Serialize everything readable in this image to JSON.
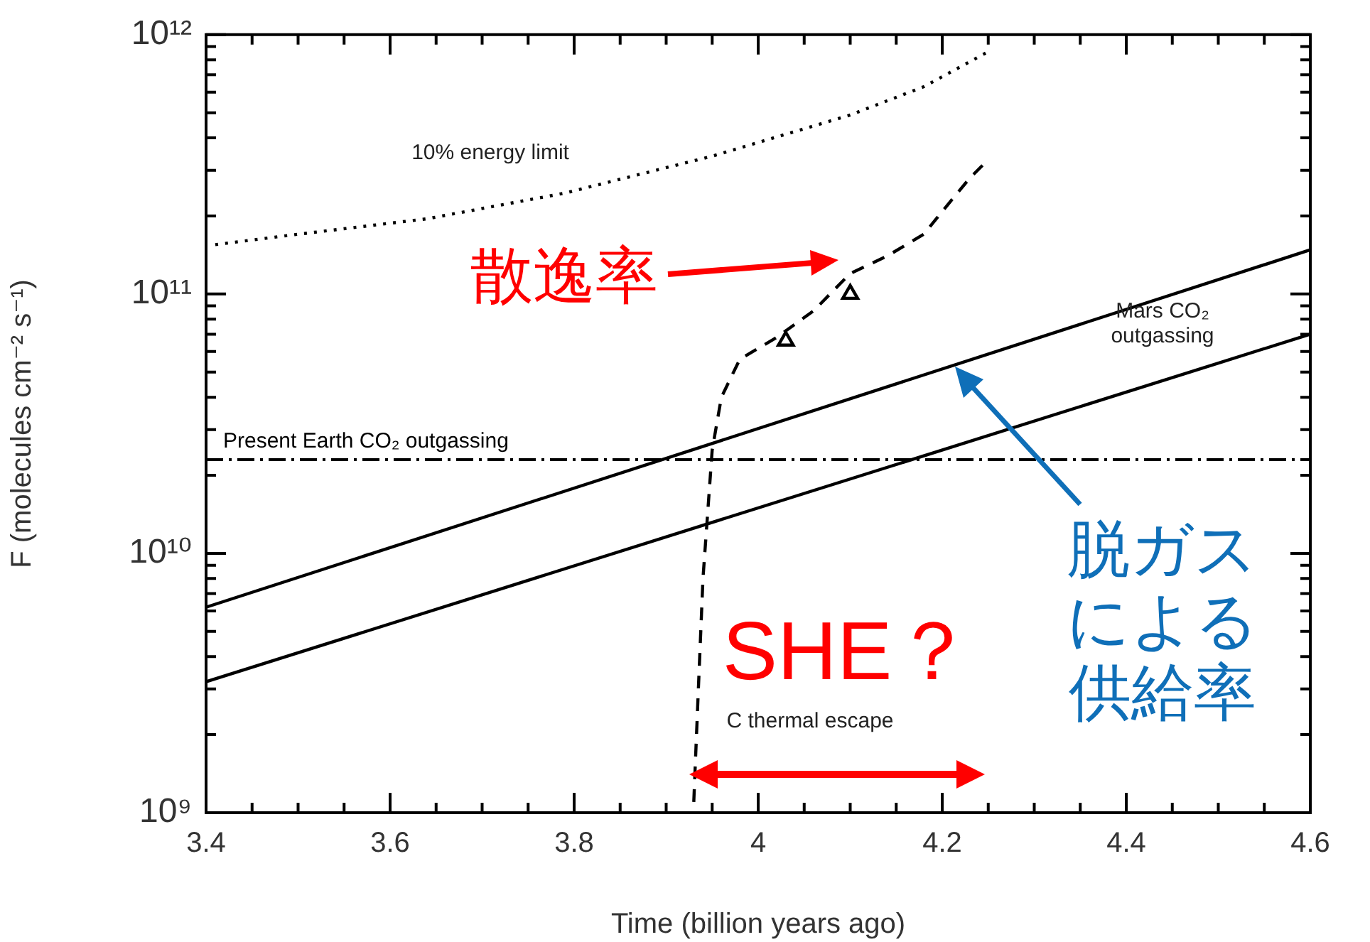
{
  "chart_data": {
    "type": "line",
    "xlabel": "Time (billion years ago)",
    "ylabel": "F (molecules cm⁻² s⁻¹)",
    "xlim": [
      3.4,
      4.6
    ],
    "xticks": [
      3.4,
      {
        "value": 3.45,
        "label": null
      },
      {
        "value": 3.5,
        "label": null
      },
      {
        "value": 3.55,
        "label": null
      },
      3.6,
      {
        "value": 3.65,
        "label": null
      },
      {
        "value": 3.7,
        "label": null
      },
      {
        "value": 3.75,
        "label": null
      },
      3.8,
      {
        "value": 3.85,
        "label": null
      },
      {
        "value": 3.9,
        "label": null
      },
      {
        "value": 3.95,
        "label": null
      },
      4.0,
      {
        "value": 4.05,
        "label": null
      },
      {
        "value": 4.1,
        "label": null
      },
      {
        "value": 4.15,
        "label": null
      },
      4.2,
      {
        "value": 4.25,
        "label": null
      },
      {
        "value": 4.3,
        "label": null
      },
      {
        "value": 4.35,
        "label": null
      },
      4.4,
      {
        "value": 4.45,
        "label": null
      },
      {
        "value": 4.5,
        "label": null
      },
      {
        "value": 4.55,
        "label": null
      },
      4.6
    ],
    "ylim": [
      1000000000.0,
      1000000000000.0
    ],
    "yticks": [
      {
        "value": 1000000000.0,
        "label": "10⁹"
      },
      {
        "value": 2000000000.0,
        "label": null
      },
      {
        "value": 3000000000.0,
        "label": null
      },
      {
        "value": 4000000000.0,
        "label": null
      },
      {
        "value": 5000000000.0,
        "label": null
      },
      {
        "value": 6000000000.0,
        "label": null
      },
      {
        "value": 7000000000.0,
        "label": null
      },
      {
        "value": 8000000000.0,
        "label": null
      },
      {
        "value": 9000000000.0,
        "label": null
      },
      {
        "value": 10000000000.0,
        "label": "10¹⁰"
      },
      {
        "value": 20000000000.0,
        "label": null
      },
      {
        "value": 30000000000.0,
        "label": null
      },
      {
        "value": 40000000000.0,
        "label": null
      },
      {
        "value": 50000000000.0,
        "label": null
      },
      {
        "value": 60000000000.0,
        "label": null
      },
      {
        "value": 70000000000.0,
        "label": null
      },
      {
        "value": 80000000000.0,
        "label": null
      },
      {
        "value": 90000000000.0,
        "label": null
      },
      {
        "value": 100000000000.0,
        "label": "10¹¹"
      },
      {
        "value": 200000000000.0,
        "label": null
      },
      {
        "value": 300000000000.0,
        "label": null
      },
      {
        "value": 400000000000.0,
        "label": null
      },
      {
        "value": 500000000000.0,
        "label": null
      },
      {
        "value": 600000000000.0,
        "label": null
      },
      {
        "value": 700000000000.0,
        "label": null
      },
      {
        "value": 800000000000.0,
        "label": null
      },
      {
        "value": 900000000000.0,
        "label": null
      },
      {
        "value": 1000000000000.0,
        "label": "10¹²"
      }
    ],
    "log": "y",
    "grid": false,
    "legend": false,
    "series": [
      {
        "color": "#000000",
        "line_style": "dotted",
        "marker": "none",
        "x": [
          3.41,
          3.5,
          3.64,
          3.79,
          3.95,
          4.1,
          4.18,
          4.25
        ],
        "values": [
          155000000000.0,
          170000000000.0,
          195000000000.0,
          245000000000.0,
          340000000000.0,
          490000000000.0,
          630000000000.0,
          860000000000.0
        ]
      },
      {
        "color": "#000000",
        "line_style": "dashed",
        "marker": "none",
        "x": [
          3.93,
          3.935,
          3.94,
          3.95,
          3.96,
          3.98,
          4.02,
          4.06,
          4.1,
          4.14,
          4.18,
          4.21,
          4.23,
          4.25
        ],
        "values": [
          1100000000.0,
          3000000000.0,
          8000000000.0,
          25000000000.0,
          40000000000.0,
          56000000000.0,
          68000000000.0,
          86000000000.0,
          120000000000.0,
          140000000000.0,
          170000000000.0,
          230000000000.0,
          280000000000.0,
          330000000000.0
        ]
      },
      {
        "color": "#000000",
        "line_style": "solid",
        "marker": "none",
        "x": [
          3.4,
          4.6
        ],
        "values": [
          6200000000.0,
          148000000000.0
        ]
      },
      {
        "color": "#000000",
        "line_style": "solid",
        "marker": "none",
        "x": [
          3.4,
          4.6
        ],
        "values": [
          3200000000.0,
          70000000000.0
        ]
      },
      {
        "type": "scatter",
        "color": "#000000",
        "marker": "triangle",
        "x": [
          4.03,
          4.1
        ],
        "values": [
          66000000000.0,
          100000000000.0
        ]
      }
    ],
    "ref_lines": [
      {
        "axis": "y",
        "value": 23000000000.0,
        "label": "Present Earth CO₂ outgassing",
        "color": "#000000",
        "line_style": "dashdot"
      }
    ],
    "annotations": [
      "10% energy limit",
      "Mars CO₂\noutgassing",
      "C thermal escape",
      "散逸率",
      "SHE？",
      "脱ガスによる供給率"
    ]
  }
}
